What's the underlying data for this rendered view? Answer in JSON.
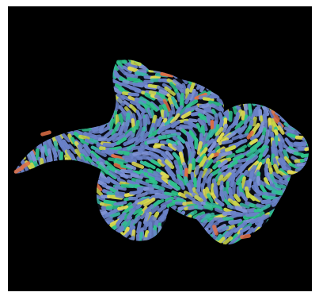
{
  "image": {
    "subject": "bacterial-colony-micrograph",
    "background_color": "#000000",
    "frame_color": "#ffffff",
    "cell_colors": {
      "blue": "#6a82c8",
      "blue_light": "#7f93d6",
      "green": "#2ec28a",
      "teal": "#38b7a4",
      "yellow": "#c9d44a",
      "yellow_bright": "#e3dd53",
      "orange": "#e07046"
    }
  }
}
